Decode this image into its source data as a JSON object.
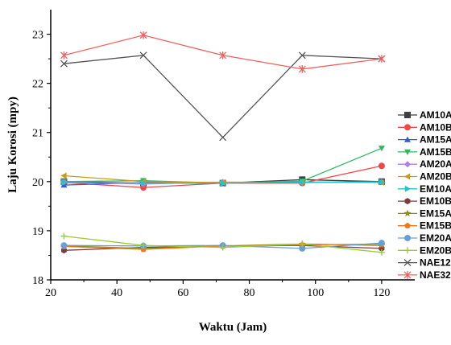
{
  "chart_data": {
    "type": "line",
    "xlabel": "Waktu (Jam)",
    "ylabel": "Laju Korosi (mpy)",
    "xlim": [
      20,
      130
    ],
    "ylim": [
      18,
      23.5
    ],
    "xticks": [
      20,
      40,
      60,
      80,
      100,
      120
    ],
    "yticks": [
      18,
      19,
      20,
      21,
      22,
      23
    ],
    "x": [
      24,
      48,
      72,
      96,
      120
    ],
    "legend_position": "right",
    "series": [
      {
        "name": "AM10A",
        "color": "#3f3f3f",
        "marker": "square",
        "values": [
          20.0,
          19.97,
          19.97,
          20.04,
          20.0
        ]
      },
      {
        "name": "AM10B",
        "color": "#f04848",
        "marker": "circle",
        "values": [
          19.98,
          19.88,
          19.97,
          19.97,
          20.32
        ]
      },
      {
        "name": "AM15A",
        "color": "#2b5fd9",
        "marker": "triangle-up",
        "values": [
          19.93,
          19.98,
          19.97,
          19.98,
          20.0
        ]
      },
      {
        "name": "AM15B",
        "color": "#2fb864",
        "marker": "triangle-down",
        "values": [
          20.0,
          20.02,
          19.97,
          20.01,
          20.68
        ]
      },
      {
        "name": "AM20A",
        "color": "#b07ee8",
        "marker": "diamond",
        "values": [
          19.99,
          19.95,
          19.99,
          19.98,
          19.99
        ]
      },
      {
        "name": "AM20B",
        "color": "#c99a17",
        "marker": "triangle-left",
        "values": [
          20.12,
          20.0,
          19.98,
          19.99,
          19.98
        ]
      },
      {
        "name": "EM10A",
        "color": "#1ec8c8",
        "marker": "triangle-right",
        "values": [
          19.98,
          19.97,
          19.97,
          19.99,
          19.99
        ]
      },
      {
        "name": "EM10B",
        "color": "#7d3b3b",
        "marker": "hexagon",
        "values": [
          18.6,
          18.66,
          18.69,
          18.7,
          18.64
        ]
      },
      {
        "name": "EM15A",
        "color": "#8c8c1a",
        "marker": "star",
        "values": [
          18.69,
          18.64,
          18.69,
          18.73,
          18.7
        ]
      },
      {
        "name": "EM15B",
        "color": "#f07818",
        "marker": "pentagon",
        "values": [
          18.68,
          18.62,
          18.69,
          18.71,
          18.73
        ]
      },
      {
        "name": "EM20A",
        "color": "#6a9ed8",
        "marker": "circle",
        "values": [
          18.7,
          18.69,
          18.7,
          18.64,
          18.75
        ]
      },
      {
        "name": "EM20B",
        "color": "#9acd32",
        "marker": "plus",
        "values": [
          18.89,
          18.7,
          18.66,
          18.73,
          18.56
        ]
      },
      {
        "name": "NAE12",
        "color": "#555555",
        "marker": "x",
        "values": [
          22.4,
          22.57,
          20.9,
          22.57,
          22.5
        ]
      },
      {
        "name": "NAE32",
        "color": "#f06060",
        "marker": "asterisk",
        "values": [
          22.57,
          22.98,
          22.57,
          22.29,
          22.5
        ]
      }
    ]
  }
}
